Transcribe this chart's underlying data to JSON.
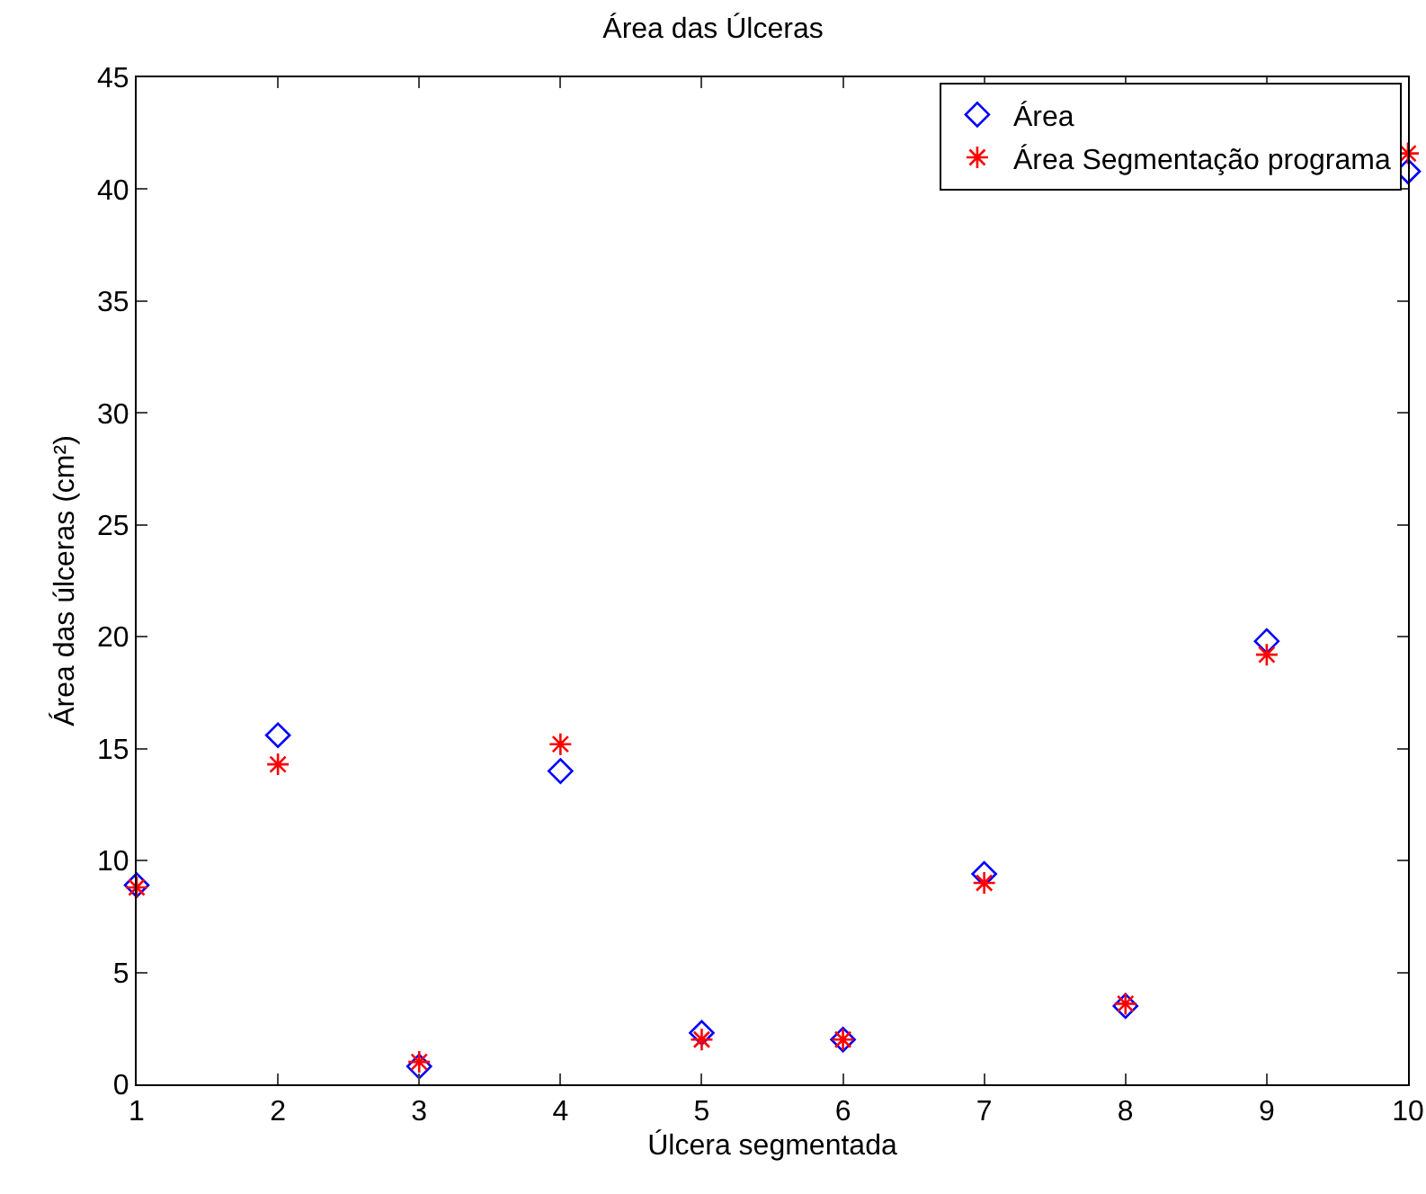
{
  "chart_data": {
    "type": "scatter",
    "title": "Área das Úlceras",
    "xlabel": "Úlcera segmentada",
    "ylabel": "Área das úlceras (cm²)",
    "x": [
      1,
      2,
      3,
      4,
      5,
      6,
      7,
      8,
      9,
      10
    ],
    "series": [
      {
        "name": "Área",
        "color": "#0000ff",
        "marker": "diamond",
        "values": [
          8.9,
          15.6,
          0.8,
          14.0,
          2.3,
          2.0,
          9.4,
          3.5,
          19.8,
          40.8
        ]
      },
      {
        "name": "Área Segmentação programa",
        "color": "#ff0000",
        "marker": "cross",
        "values": [
          8.8,
          14.3,
          1.0,
          15.2,
          2.0,
          2.0,
          9.0,
          3.6,
          19.2,
          41.6
        ]
      }
    ],
    "xlim": [
      1,
      10
    ],
    "xticks": [
      1,
      2,
      3,
      4,
      5,
      6,
      7,
      8,
      9,
      10
    ],
    "ylim": [
      0,
      45
    ],
    "yticks": [
      0,
      5,
      10,
      15,
      20,
      25,
      30,
      35,
      40,
      45
    ],
    "grid": false,
    "legend": "top right"
  }
}
